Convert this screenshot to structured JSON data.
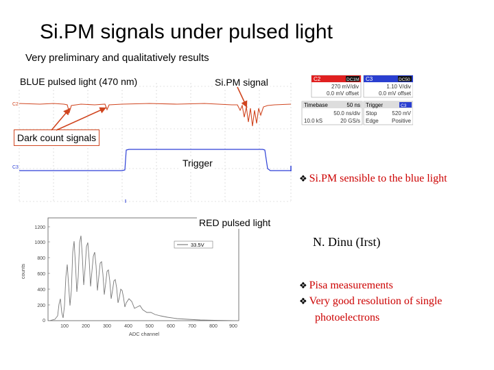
{
  "slide": {
    "title": "Si.PM signals under pulsed light",
    "subtitle": "Very preliminary and qualitatively results"
  },
  "labels": {
    "blue_light": "BLUE pulsed light (470 nm)",
    "sipm_signal": "Si.PM signal",
    "dark_count": "Dark count signals",
    "trigger": "Trigger",
    "red_light": "RED pulsed light"
  },
  "scope_panel": {
    "c2": {
      "name": "C2",
      "tag": "DC1M",
      "vdiv": "270 mV/div",
      "offset": "0.0 mV offset"
    },
    "c3": {
      "name": "C3",
      "tag": "DC50",
      "vdiv": "1.10 V/div",
      "offset": "0.0 mV offset"
    },
    "timebase": {
      "name": "Timebase",
      "value": "50 ns",
      "rate": "50.0 ns/div",
      "samples": "10.0 kS",
      "gs": "20.0 GS/s"
    },
    "trigger": {
      "name": "Trigger",
      "tag": "C3",
      "mode": "Stop",
      "level": "520 mV",
      "type": "Edge",
      "slope": "Positive"
    }
  },
  "bullets": {
    "b1": "Si.PM sensible to the blue light",
    "b2": "Pisa measurements",
    "b3": "Very good resolution of single",
    "b3_cont": "photoelectrons"
  },
  "credit": "N. Dinu  (Irst)",
  "histogram": {
    "legend": "33.5V",
    "xlabel": "ADC channel",
    "ylabel": "counts",
    "yticks": [
      "0",
      "200",
      "400",
      "600",
      "800",
      "1000",
      "1200"
    ],
    "xticks": [
      "100",
      "200",
      "300",
      "400",
      "500",
      "600",
      "700",
      "800",
      "900"
    ]
  },
  "colors": {
    "sipm_trace": "#d0451f",
    "trigger_trace": "#2c3fd6",
    "bullet_text": "#cc0000",
    "c2_header": "#e02020",
    "c3_header": "#2a3fd0"
  }
}
